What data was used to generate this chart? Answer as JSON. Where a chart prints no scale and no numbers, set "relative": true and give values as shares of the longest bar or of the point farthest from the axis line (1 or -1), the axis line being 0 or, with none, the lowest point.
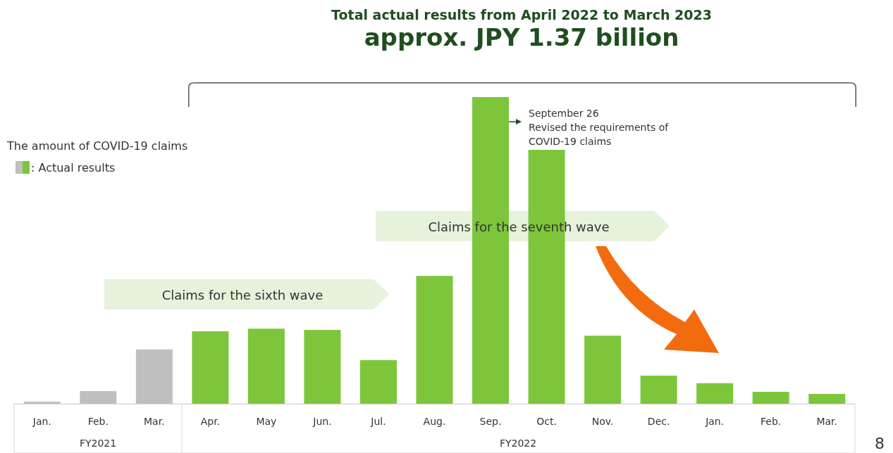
{
  "chart_data": {
    "type": "bar",
    "title": "Total actual results from April 2022 to March 2023",
    "subtitle": "approx. JPY 1.37 billion",
    "relative": true,
    "categories": [
      "Jan.",
      "Feb.",
      "Mar.",
      "Apr.",
      "May",
      "Jun.",
      "Jul.",
      "Aug.",
      "Sep.",
      "Oct.",
      "Nov.",
      "Dec.",
      "Jan.",
      "Feb.",
      "Mar."
    ],
    "values": [
      0.007,
      0.041,
      0.177,
      0.236,
      0.245,
      0.241,
      0.142,
      0.417,
      1,
      0.828,
      0.222,
      0.092,
      0.067,
      0.039,
      0.032
    ],
    "colors": [
      "#bfbfbf",
      "#bfbfbf",
      "#bfbfbf",
      "#7dc63c",
      "#7dc63c",
      "#7dc63c",
      "#7dc63c",
      "#7dc63c",
      "#7dc63c",
      "#7dc63c",
      "#7dc63c",
      "#7dc63c",
      "#7dc63c",
      "#7dc63c",
      "#7dc63c"
    ],
    "annotations": [
      {
        "text": "September 26\nRevised the requirements of\nCOVID-19 claims",
        "x": "Sep.",
        "y": 0.92
      },
      "The amount of COVID-19 claims",
      ": Actual results",
      "Claims for the sixth wave",
      "Claims for the seventh wave",
      "FY2021",
      "FY2022",
      "8"
    ],
    "data_labels": false
  }
}
